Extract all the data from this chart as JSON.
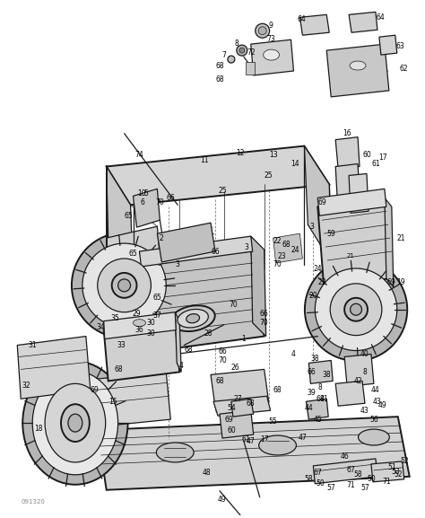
{
  "background_color": "#f0f0f0",
  "diagram_color": "#2a2a2a",
  "watermark": "091320",
  "fig_width": 4.74,
  "fig_height": 5.77,
  "dpi": 100
}
